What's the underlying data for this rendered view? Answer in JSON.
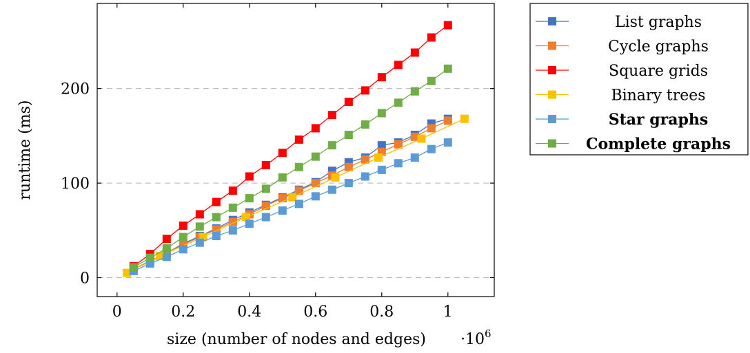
{
  "chart_data": {
    "type": "line",
    "xlabel": "size (number of nodes and edges)",
    "ylabel": "runtime (ms)",
    "x_scale_label": "·10",
    "x_scale_exponent": "6",
    "xlim": [
      -0.06,
      1.14
    ],
    "ylim": [
      -20,
      290
    ],
    "x_ticks": [
      0,
      0.2,
      0.4,
      0.6,
      0.8,
      1
    ],
    "x_tick_labels": [
      "0",
      "0.2",
      "0.4",
      "0.6",
      "0.8",
      "1"
    ],
    "y_ticks": [
      0,
      100,
      200
    ],
    "y_tick_labels": [
      "0",
      "100",
      "200"
    ],
    "y_grid": true,
    "legend_position": "outside-right-top",
    "series": [
      {
        "name": "List graphs",
        "bold": false,
        "color": "#4472c4",
        "x": [
          0.05,
          0.1,
          0.15,
          0.2,
          0.25,
          0.3,
          0.35,
          0.4,
          0.45,
          0.5,
          0.55,
          0.6,
          0.65,
          0.7,
          0.75,
          0.8,
          0.85,
          0.9,
          0.95,
          1.0
        ],
        "y": [
          9,
          18,
          26,
          36,
          44,
          52,
          61,
          69,
          77,
          85,
          93,
          101,
          113,
          122,
          127,
          140,
          143,
          151,
          163,
          168
        ]
      },
      {
        "name": "Cycle graphs",
        "bold": false,
        "color": "#ed7d31",
        "x": [
          0.05,
          0.1,
          0.15,
          0.2,
          0.25,
          0.3,
          0.35,
          0.4,
          0.45,
          0.5,
          0.55,
          0.6,
          0.65,
          0.7,
          0.75,
          0.8,
          0.85,
          0.9,
          0.95,
          1.0
        ],
        "y": [
          9,
          17,
          26,
          35,
          43,
          51,
          59,
          67,
          76,
          84,
          92,
          100,
          108,
          117,
          125,
          133,
          141,
          149,
          158,
          166
        ]
      },
      {
        "name": "Square grids",
        "bold": false,
        "color": "#ff0000",
        "x": [
          0.05,
          0.1,
          0.15,
          0.2,
          0.25,
          0.3,
          0.35,
          0.4,
          0.45,
          0.5,
          0.55,
          0.6,
          0.65,
          0.7,
          0.75,
          0.8,
          0.85,
          0.9,
          0.95,
          1.0
        ],
        "y": [
          12,
          25,
          41,
          55,
          67,
          80,
          92,
          107,
          119,
          132,
          146,
          158,
          172,
          186,
          198,
          212,
          225,
          238,
          254,
          267
        ]
      },
      {
        "name": "Binary trees",
        "bold": false,
        "color": "#ffc000",
        "x": [
          0.03,
          0.13,
          0.26,
          0.39,
          0.53,
          0.66,
          0.79,
          0.92,
          1.05
        ],
        "y": [
          5,
          23,
          43,
          64,
          85,
          106,
          127,
          147,
          168
        ]
      },
      {
        "name": "Star graphs",
        "bold": true,
        "color": "#5b9bd5",
        "x": [
          0.05,
          0.1,
          0.15,
          0.2,
          0.25,
          0.3,
          0.35,
          0.4,
          0.45,
          0.5,
          0.55,
          0.6,
          0.65,
          0.7,
          0.75,
          0.8,
          0.85,
          0.9,
          0.95,
          1.0
        ],
        "y": [
          7,
          15,
          22,
          30,
          37,
          44,
          50,
          57,
          64,
          71,
          78,
          86,
          93,
          100,
          107,
          114,
          121,
          127,
          136,
          143
        ]
      },
      {
        "name": "Complete graphs",
        "bold": true,
        "color": "#70ad47",
        "x": [
          0.05,
          0.1,
          0.15,
          0.2,
          0.25,
          0.3,
          0.35,
          0.4,
          0.45,
          0.5,
          0.55,
          0.6,
          0.65,
          0.7,
          0.75,
          0.8,
          0.85,
          0.9,
          0.95,
          1.0
        ],
        "y": [
          11,
          21,
          31,
          43,
          54,
          64,
          74,
          84,
          94,
          106,
          117,
          128,
          140,
          151,
          162,
          174,
          185,
          197,
          208,
          221
        ]
      }
    ]
  }
}
